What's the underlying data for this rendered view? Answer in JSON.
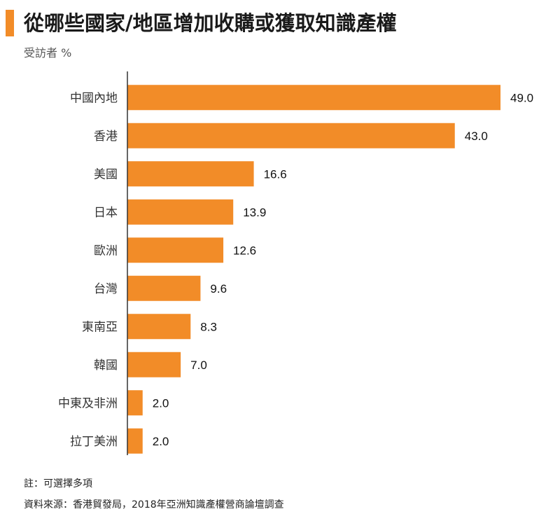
{
  "title": "從哪些國家/地區增加收購或獲取知識產權",
  "subtitle": "受訪者 %",
  "notes": {
    "note": "註：可選擇多項",
    "source": "資料來源：香港貿發局，2018年亞洲知識產權營商論壇調查"
  },
  "colors": {
    "bar": "#f28c28",
    "accent": "#f28c28",
    "axis": "#333333"
  },
  "chart_data": {
    "type": "bar",
    "orientation": "horizontal",
    "categories": [
      "中國內地",
      "香港",
      "美國",
      "日本",
      "歐洲",
      "台灣",
      "東南亞",
      "韓國",
      "中東及非洲",
      "拉丁美洲"
    ],
    "values": [
      49.0,
      43.0,
      16.6,
      13.9,
      12.6,
      9.6,
      8.3,
      7.0,
      2.0,
      2.0
    ],
    "labels": [
      "49.0",
      "43.0",
      "16.6",
      "13.9",
      "12.6",
      "9.6",
      "8.3",
      "7.0",
      "2.0",
      "2.0"
    ],
    "xlim": [
      0,
      49.0
    ],
    "grid": false,
    "legend": false
  }
}
